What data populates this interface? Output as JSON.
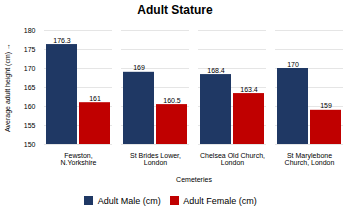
{
  "chart_data": {
    "type": "bar",
    "title": "Adult Stature",
    "x_label": "Cemeteries",
    "y_label": "Average adult height (cm)",
    "categories": [
      "Fewston,\nN.Yorkshire",
      "St Brides Lower,\nLondon",
      "Chelsea Old Church,\nLondon",
      "St Marylebone\nChurch, London"
    ],
    "series": [
      {
        "name": "Adult Male (cm)",
        "color": "#1F3864",
        "values": [
          176.3,
          169,
          168.4,
          170
        ]
      },
      {
        "name": "Adult Female (cm)",
        "color": "#C00000",
        "values": [
          161,
          160.5,
          163.4,
          159
        ]
      }
    ],
    "ylim": [
      150,
      180
    ],
    "yticks": [
      150,
      155,
      160,
      165,
      170,
      175,
      180
    ],
    "grid": true,
    "data_labels": true,
    "legend": "bottom"
  }
}
